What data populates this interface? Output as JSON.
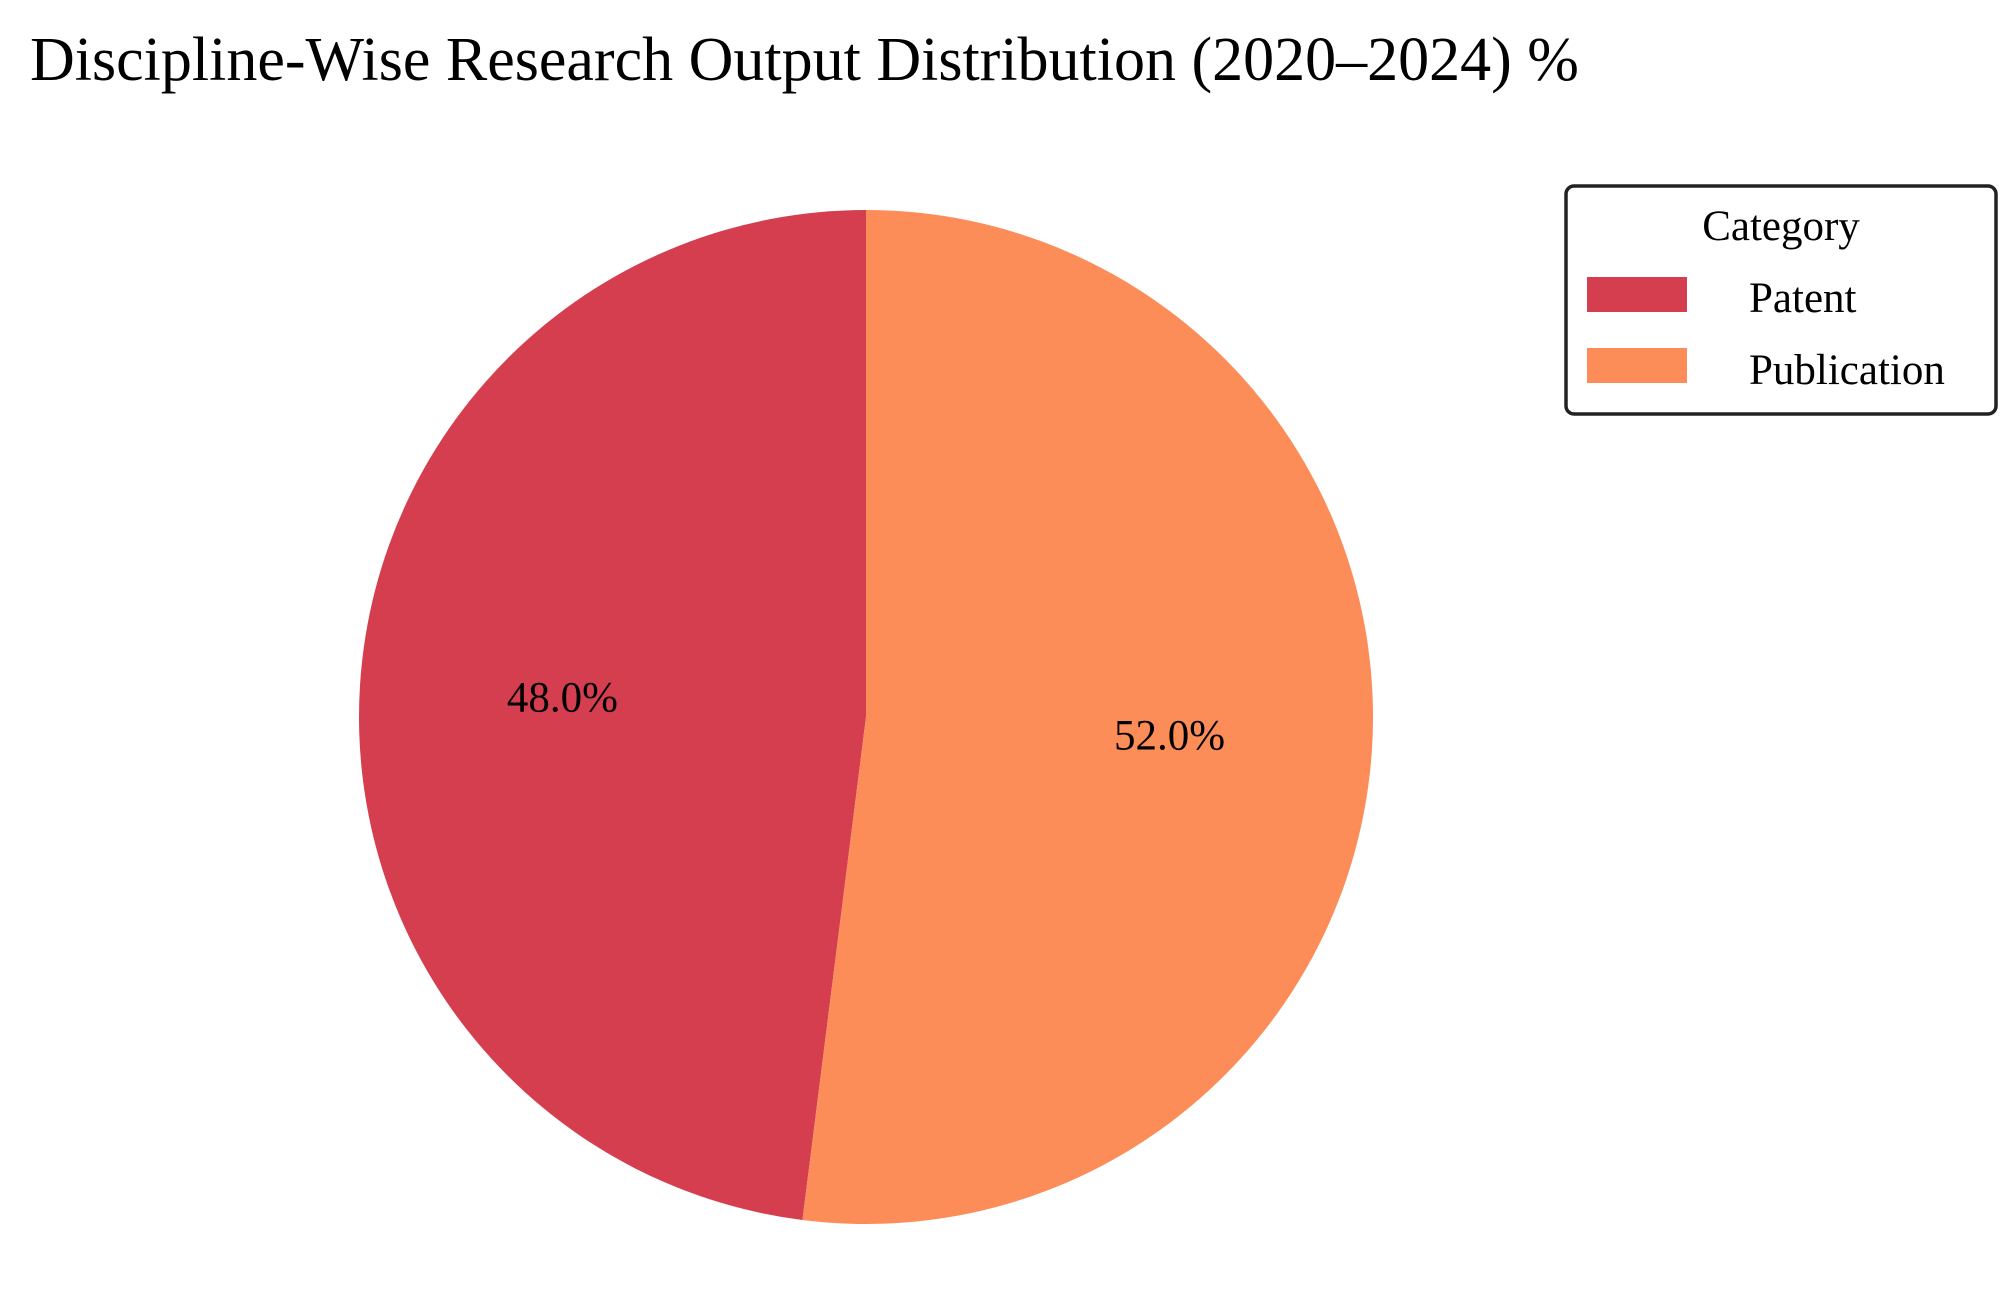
{
  "chart_data": {
    "type": "pie",
    "title": "Discipline-Wise Research Output Distribution (2020–2024) %",
    "categories": [
      "Patent",
      "Publication"
    ],
    "values": [
      48.0,
      52.0
    ],
    "value_labels": [
      "48.0%",
      "52.0%"
    ],
    "colors": [
      "#d53e4f",
      "#fc8d59"
    ],
    "start_angle_deg": 90,
    "direction": "counterclockwise",
    "legend": {
      "title": "Category",
      "placement": "upper right, outside plot",
      "entries": [
        "Patent",
        "Publication"
      ]
    }
  }
}
